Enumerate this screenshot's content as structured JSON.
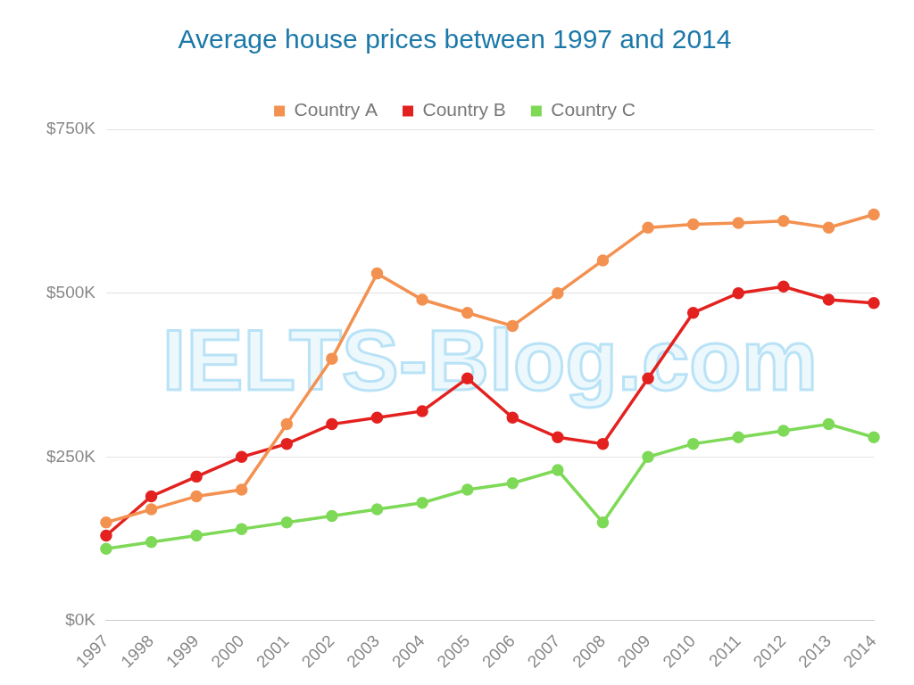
{
  "chart_data": {
    "type": "line",
    "title": "Average house prices between 1997 and 2014",
    "annotations": [
      "IELTS-Blog.com"
    ],
    "categories": [
      "1997",
      "1998",
      "1999",
      "2000",
      "2001",
      "2002",
      "2003",
      "2004",
      "2005",
      "2006",
      "2007",
      "2008",
      "2009",
      "2010",
      "2011",
      "2012",
      "2013",
      "2014"
    ],
    "series": [
      {
        "name": "Country A",
        "color": "#f39150",
        "values": [
          150,
          170,
          190,
          200,
          300,
          400,
          530,
          490,
          470,
          450,
          500,
          550,
          600,
          605,
          607,
          610,
          600,
          620
        ]
      },
      {
        "name": "Country B",
        "color": "#e3211f",
        "values": [
          130,
          190,
          220,
          250,
          270,
          300,
          310,
          320,
          370,
          310,
          280,
          270,
          370,
          470,
          500,
          510,
          490,
          485
        ]
      },
      {
        "name": "Country C",
        "color": "#7ed957",
        "values": [
          110,
          120,
          130,
          140,
          150,
          160,
          170,
          180,
          200,
          210,
          230,
          150,
          250,
          270,
          280,
          290,
          300,
          280
        ]
      }
    ],
    "ylim": [
      0,
      750
    ],
    "yticks": [
      {
        "value": 0,
        "label": "$0K"
      },
      {
        "value": 250,
        "label": "$250K"
      },
      {
        "value": 500,
        "label": "$500K"
      },
      {
        "value": 750,
        "label": "$750K"
      }
    ],
    "grid": true,
    "legend": "top",
    "marker": "circle"
  }
}
